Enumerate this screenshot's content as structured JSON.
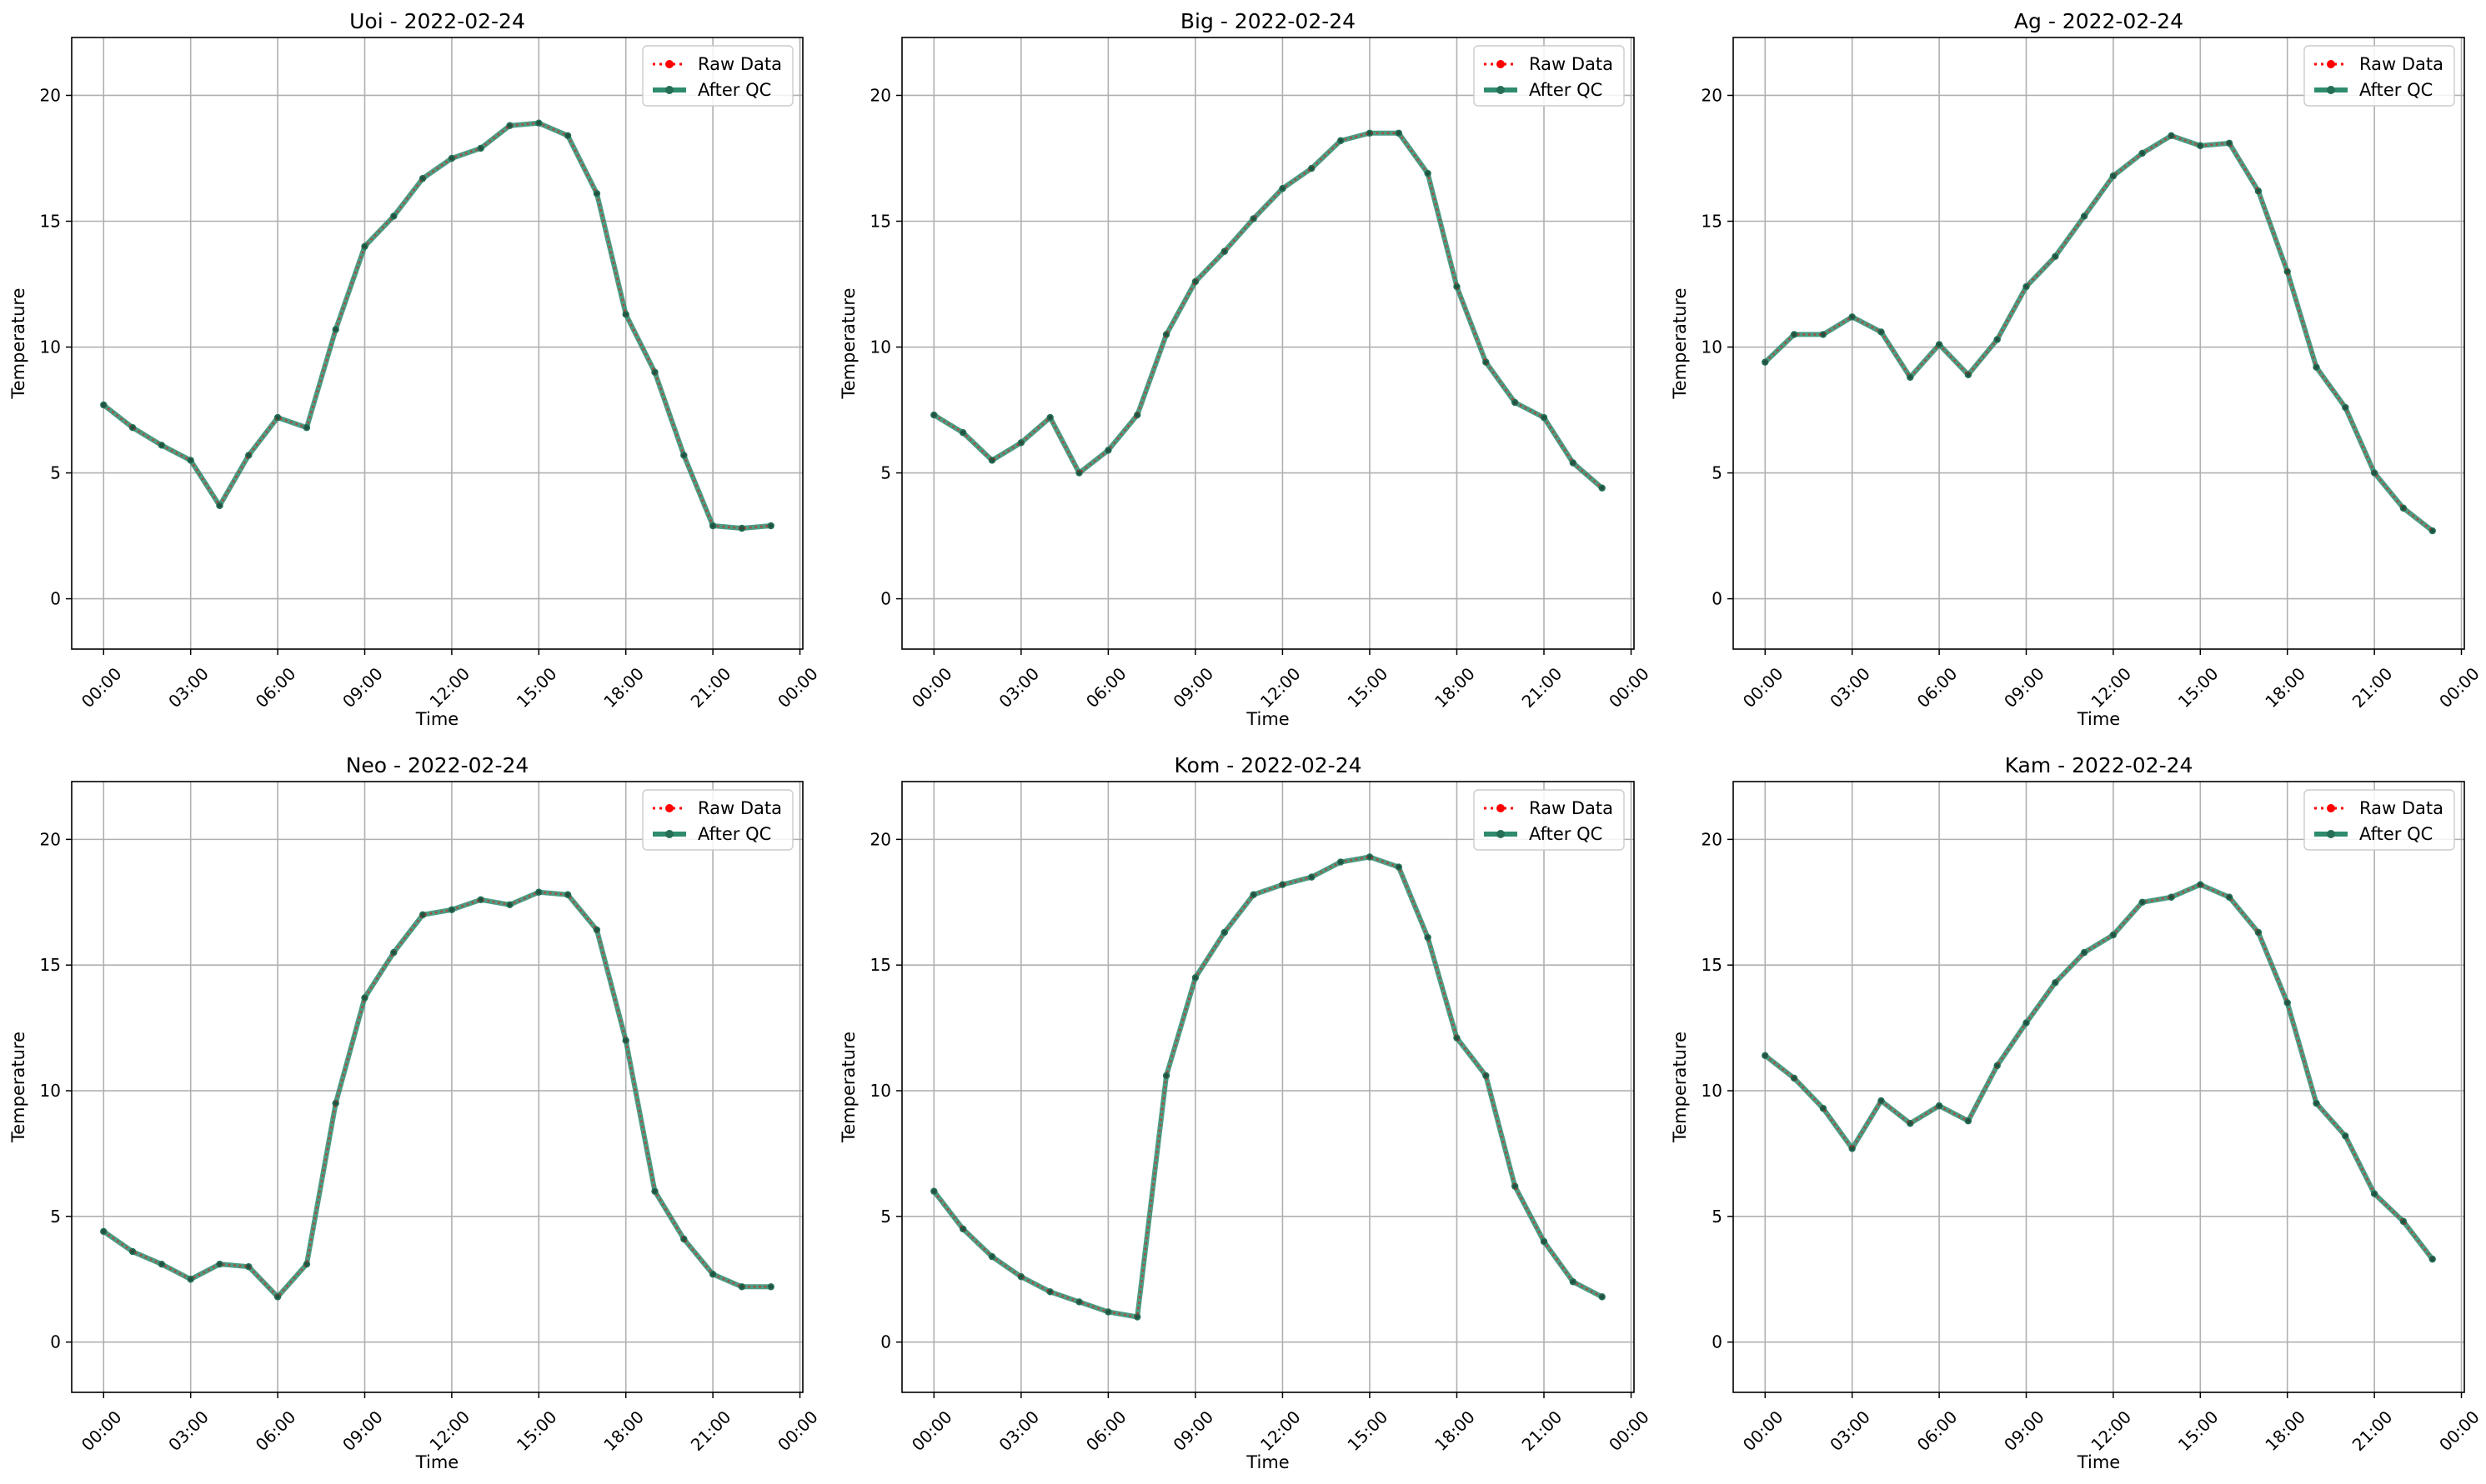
{
  "colors": {
    "raw": "#ff0000",
    "qc": "#2e8b6e",
    "qc_marker": "#256f55",
    "grid": "#b0b0b0",
    "axis": "#000000",
    "legend_border": "#cccccc"
  },
  "legend": {
    "raw_label": "Raw Data",
    "qc_label": "After QC",
    "placement": "upper-right"
  },
  "chart_data": [
    {
      "type": "line",
      "title": "Uoi - 2022-02-24",
      "xlabel": "Time",
      "ylabel": "Temperature",
      "ylim": [
        -2,
        22.3
      ],
      "yticks": [
        0,
        5,
        10,
        15,
        20
      ],
      "xlim_hours": [
        -1.1,
        24.1
      ],
      "xticks_hours": [
        0,
        3,
        6,
        9,
        12,
        15,
        18,
        21,
        24
      ],
      "xtick_labels": [
        "00:00",
        "03:00",
        "06:00",
        "09:00",
        "12:00",
        "15:00",
        "18:00",
        "21:00",
        "00:00"
      ],
      "grid": true,
      "hours": [
        0,
        1,
        2,
        3,
        4,
        5,
        6,
        7,
        8,
        9,
        10,
        11,
        12,
        13,
        14,
        15,
        16,
        17,
        18,
        19,
        20,
        21,
        22,
        23
      ],
      "series": [
        {
          "name": "Raw Data",
          "values": [
            7.7,
            6.8,
            6.1,
            5.5,
            3.7,
            5.7,
            7.2,
            6.8,
            10.7,
            14.0,
            15.2,
            16.7,
            17.5,
            17.9,
            18.8,
            18.9,
            18.4,
            16.1,
            11.3,
            9.0,
            5.7,
            2.9,
            2.8,
            2.9
          ]
        },
        {
          "name": "After QC",
          "values": [
            7.7,
            6.8,
            6.1,
            5.5,
            3.7,
            5.7,
            7.2,
            6.8,
            10.7,
            14.0,
            15.2,
            16.7,
            17.5,
            17.9,
            18.8,
            18.9,
            18.4,
            16.1,
            11.3,
            9.0,
            5.7,
            2.9,
            2.8,
            2.9
          ]
        }
      ]
    },
    {
      "type": "line",
      "title": "Big - 2022-02-24",
      "xlabel": "Time",
      "ylabel": "Temperature",
      "ylim": [
        -2,
        22.3
      ],
      "yticks": [
        0,
        5,
        10,
        15,
        20
      ],
      "xlim_hours": [
        -1.1,
        24.1
      ],
      "xticks_hours": [
        0,
        3,
        6,
        9,
        12,
        15,
        18,
        21,
        24
      ],
      "xtick_labels": [
        "00:00",
        "03:00",
        "06:00",
        "09:00",
        "12:00",
        "15:00",
        "18:00",
        "21:00",
        "00:00"
      ],
      "grid": true,
      "hours": [
        0,
        1,
        2,
        3,
        4,
        5,
        6,
        7,
        8,
        9,
        10,
        11,
        12,
        13,
        14,
        15,
        16,
        17,
        18,
        19,
        20,
        21,
        22,
        23
      ],
      "series": [
        {
          "name": "Raw Data",
          "values": [
            7.3,
            6.6,
            5.5,
            6.2,
            7.2,
            5.0,
            5.9,
            7.3,
            10.5,
            12.6,
            13.8,
            15.1,
            16.3,
            17.1,
            18.2,
            18.5,
            18.5,
            16.9,
            12.4,
            9.4,
            7.8,
            7.2,
            5.4,
            4.4
          ]
        },
        {
          "name": "After QC",
          "values": [
            7.3,
            6.6,
            5.5,
            6.2,
            7.2,
            5.0,
            5.9,
            7.3,
            10.5,
            12.6,
            13.8,
            15.1,
            16.3,
            17.1,
            18.2,
            18.5,
            18.5,
            16.9,
            12.4,
            9.4,
            7.8,
            7.2,
            5.4,
            4.4
          ]
        }
      ]
    },
    {
      "type": "line",
      "title": "Ag - 2022-02-24",
      "xlabel": "Time",
      "ylabel": "Temperature",
      "ylim": [
        -2,
        22.3
      ],
      "yticks": [
        0,
        5,
        10,
        15,
        20
      ],
      "xlim_hours": [
        -1.1,
        24.1
      ],
      "xticks_hours": [
        0,
        3,
        6,
        9,
        12,
        15,
        18,
        21,
        24
      ],
      "xtick_labels": [
        "00:00",
        "03:00",
        "06:00",
        "09:00",
        "12:00",
        "15:00",
        "18:00",
        "21:00",
        "00:00"
      ],
      "grid": true,
      "hours": [
        0,
        1,
        2,
        3,
        4,
        5,
        6,
        7,
        8,
        9,
        10,
        11,
        12,
        13,
        14,
        15,
        16,
        17,
        18,
        19,
        20,
        21,
        22,
        23
      ],
      "series": [
        {
          "name": "Raw Data",
          "values": [
            9.4,
            10.5,
            10.5,
            11.2,
            10.6,
            8.8,
            10.1,
            8.9,
            10.3,
            12.4,
            13.6,
            15.2,
            16.8,
            17.7,
            18.4,
            18.0,
            18.1,
            16.2,
            13.0,
            9.2,
            7.6,
            5.0,
            3.6,
            2.7
          ]
        },
        {
          "name": "After QC",
          "values": [
            9.4,
            10.5,
            10.5,
            11.2,
            10.6,
            8.8,
            10.1,
            8.9,
            10.3,
            12.4,
            13.6,
            15.2,
            16.8,
            17.7,
            18.4,
            18.0,
            18.1,
            16.2,
            13.0,
            9.2,
            7.6,
            5.0,
            3.6,
            2.7
          ]
        }
      ]
    },
    {
      "type": "line",
      "title": "Neo - 2022-02-24",
      "xlabel": "Time",
      "ylabel": "Temperature",
      "ylim": [
        -2,
        22.3
      ],
      "yticks": [
        0,
        5,
        10,
        15,
        20
      ],
      "xlim_hours": [
        -1.1,
        24.1
      ],
      "xticks_hours": [
        0,
        3,
        6,
        9,
        12,
        15,
        18,
        21,
        24
      ],
      "xtick_labels": [
        "00:00",
        "03:00",
        "06:00",
        "09:00",
        "12:00",
        "15:00",
        "18:00",
        "21:00",
        "00:00"
      ],
      "grid": true,
      "hours": [
        0,
        1,
        2,
        3,
        4,
        5,
        6,
        7,
        8,
        9,
        10,
        11,
        12,
        13,
        14,
        15,
        16,
        17,
        18,
        19,
        20,
        21,
        22,
        23
      ],
      "series": [
        {
          "name": "Raw Data",
          "values": [
            4.4,
            3.6,
            3.1,
            2.5,
            3.1,
            3.0,
            1.8,
            3.1,
            9.5,
            13.7,
            15.5,
            17.0,
            17.2,
            17.6,
            17.4,
            17.9,
            17.8,
            16.4,
            12.0,
            6.0,
            4.1,
            2.7,
            2.2,
            2.2
          ]
        },
        {
          "name": "After QC",
          "values": [
            4.4,
            3.6,
            3.1,
            2.5,
            3.1,
            3.0,
            1.8,
            3.1,
            9.5,
            13.7,
            15.5,
            17.0,
            17.2,
            17.6,
            17.4,
            17.9,
            17.8,
            16.4,
            12.0,
            6.0,
            4.1,
            2.7,
            2.2,
            2.2
          ]
        }
      ]
    },
    {
      "type": "line",
      "title": "Kom - 2022-02-24",
      "xlabel": "Time",
      "ylabel": "Temperature",
      "ylim": [
        -2,
        22.3
      ],
      "yticks": [
        0,
        5,
        10,
        15,
        20
      ],
      "xlim_hours": [
        -1.1,
        24.1
      ],
      "xticks_hours": [
        0,
        3,
        6,
        9,
        12,
        15,
        18,
        21,
        24
      ],
      "xtick_labels": [
        "00:00",
        "03:00",
        "06:00",
        "09:00",
        "12:00",
        "15:00",
        "18:00",
        "21:00",
        "00:00"
      ],
      "grid": true,
      "hours": [
        0,
        1,
        2,
        3,
        4,
        5,
        6,
        7,
        8,
        9,
        10,
        11,
        12,
        13,
        14,
        15,
        16,
        17,
        18,
        19,
        20,
        21,
        22,
        23
      ],
      "series": [
        {
          "name": "Raw Data",
          "values": [
            6.0,
            4.5,
            3.4,
            2.6,
            2.0,
            1.6,
            1.2,
            1.0,
            10.6,
            14.5,
            16.3,
            17.8,
            18.2,
            18.5,
            19.1,
            19.3,
            18.9,
            16.1,
            12.1,
            10.6,
            6.2,
            4.0,
            2.4,
            1.8
          ]
        },
        {
          "name": "After QC",
          "values": [
            6.0,
            4.5,
            3.4,
            2.6,
            2.0,
            1.6,
            1.2,
            1.0,
            10.6,
            14.5,
            16.3,
            17.8,
            18.2,
            18.5,
            19.1,
            19.3,
            18.9,
            16.1,
            12.1,
            10.6,
            6.2,
            4.0,
            2.4,
            1.8
          ]
        }
      ]
    },
    {
      "type": "line",
      "title": "Kam - 2022-02-24",
      "xlabel": "Time",
      "ylabel": "Temperature",
      "ylim": [
        -2,
        22.3
      ],
      "yticks": [
        0,
        5,
        10,
        15,
        20
      ],
      "xlim_hours": [
        -1.1,
        24.1
      ],
      "xticks_hours": [
        0,
        3,
        6,
        9,
        12,
        15,
        18,
        21,
        24
      ],
      "xtick_labels": [
        "00:00",
        "03:00",
        "06:00",
        "09:00",
        "12:00",
        "15:00",
        "18:00",
        "21:00",
        "00:00"
      ],
      "grid": true,
      "hours": [
        0,
        1,
        2,
        3,
        4,
        5,
        6,
        7,
        8,
        9,
        10,
        11,
        12,
        13,
        14,
        15,
        16,
        17,
        18,
        19,
        20,
        21,
        22,
        23
      ],
      "series": [
        {
          "name": "Raw Data",
          "values": [
            11.4,
            10.5,
            9.3,
            7.7,
            9.6,
            8.7,
            9.4,
            8.8,
            11.0,
            12.7,
            14.3,
            15.5,
            16.2,
            17.5,
            17.7,
            18.2,
            17.7,
            16.3,
            13.5,
            9.5,
            8.2,
            5.9,
            4.8,
            3.3
          ]
        },
        {
          "name": "After QC",
          "values": [
            11.4,
            10.5,
            9.3,
            7.7,
            9.6,
            8.7,
            9.4,
            8.8,
            11.0,
            12.7,
            14.3,
            15.5,
            16.2,
            17.5,
            17.7,
            18.2,
            17.7,
            16.3,
            13.5,
            9.5,
            8.2,
            5.9,
            4.8,
            3.3
          ]
        }
      ]
    }
  ]
}
